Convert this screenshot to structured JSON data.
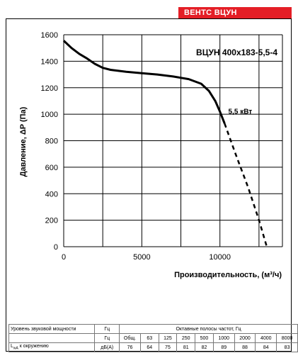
{
  "brand": "ВЕНТС ВЦУН",
  "chart_data": {
    "type": "line",
    "title": "ВЦУН 400х183-5,5-4",
    "xlabel": "Производительность, (м³/ч)",
    "ylabel": "Давление, ΔP (Па)",
    "xlim": [
      0,
      14000
    ],
    "ylim": [
      0,
      1600
    ],
    "x_ticks": [
      0,
      5000,
      10000
    ],
    "y_ticks": [
      0,
      200,
      400,
      600,
      800,
      1000,
      1200,
      1400,
      1600
    ],
    "series": [
      {
        "name": "5,5 кВт",
        "style": "solid",
        "x": [
          0,
          500,
          1000,
          1500,
          2000,
          2500,
          3000,
          4000,
          5000,
          6000,
          7000,
          8000,
          8800,
          9300,
          9700,
          10000,
          10300
        ],
        "y": [
          1555,
          1500,
          1455,
          1420,
          1380,
          1350,
          1335,
          1320,
          1310,
          1300,
          1285,
          1265,
          1230,
          1175,
          1100,
          1020,
          930
        ]
      },
      {
        "name": "",
        "style": "dashed",
        "x": [
          10300,
          11000,
          11800,
          12500,
          13000
        ],
        "y": [
          930,
          700,
          450,
          200,
          0
        ]
      }
    ],
    "annotation": {
      "text": "5,5 кВт",
      "x": 10400,
      "y": 1020
    },
    "grid": true
  },
  "noise_table": {
    "row1": {
      "label": "Уровень звуковой мощности",
      "unit": "Гц",
      "span": "Октавные полосы частот, Гц"
    },
    "row2": {
      "label": "L",
      "label_sub": "wA",
      "label_rest": " к окружению",
      "unit": "дБ(А)"
    },
    "columns": [
      "Общ.",
      "63",
      "125",
      "250",
      "500",
      "1000",
      "2000",
      "4000",
      "8000"
    ],
    "values": [
      "76",
      "64",
      "75",
      "81",
      "82",
      "89",
      "88",
      "84",
      "83"
    ]
  }
}
